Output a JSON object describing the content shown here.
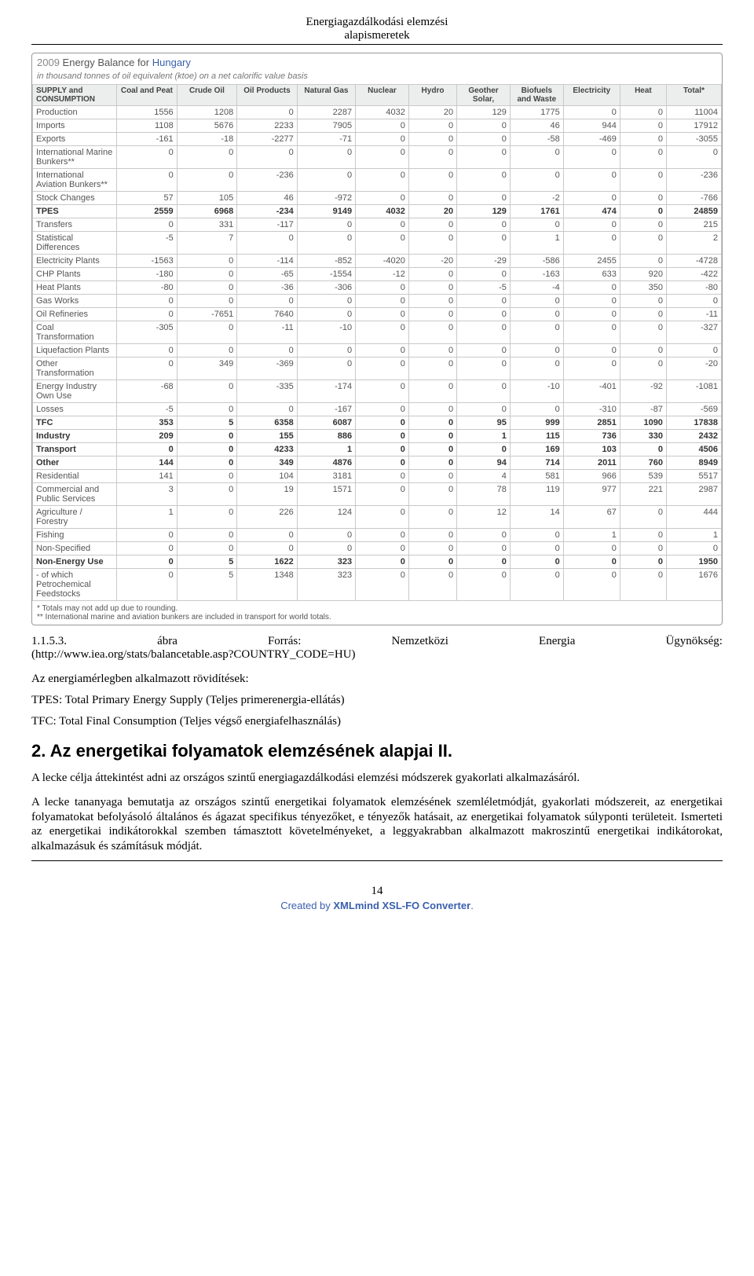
{
  "header": {
    "line1": "Energiagazdálkodási elemzési",
    "line2": "alapismeretek"
  },
  "balance": {
    "title_year": "2009",
    "title_text": "Energy Balance for",
    "title_country": "Hungary",
    "subtitle": "in thousand tonnes of oil equivalent (ktoe) on a net calorific value basis",
    "columns": [
      "SUPPLY and CONSUMPTION",
      "Coal and Peat",
      "Crude Oil",
      "Oil Products",
      "Natural Gas",
      "Nuclear",
      "Hydro",
      "Geother Solar,",
      "Biofuels and Waste",
      "Electricity",
      "Heat",
      "Total*"
    ],
    "col_widths": [
      "98",
      "70",
      "70",
      "70",
      "68",
      "62",
      "56",
      "62",
      "62",
      "66",
      "54",
      "64"
    ],
    "bold_rows": [
      7,
      15,
      16,
      17,
      18,
      23
    ],
    "rows": [
      [
        "Production",
        "1556",
        "1208",
        "0",
        "2287",
        "4032",
        "20",
        "129",
        "1775",
        "0",
        "0",
        "11004"
      ],
      [
        "Imports",
        "1108",
        "5676",
        "2233",
        "7905",
        "0",
        "0",
        "0",
        "46",
        "944",
        "0",
        "17912"
      ],
      [
        "Exports",
        "-161",
        "-18",
        "-2277",
        "-71",
        "0",
        "0",
        "0",
        "-58",
        "-469",
        "0",
        "-3055"
      ],
      [
        "International Marine Bunkers**",
        "0",
        "0",
        "0",
        "0",
        "0",
        "0",
        "0",
        "0",
        "0",
        "0",
        "0"
      ],
      [
        "International Aviation Bunkers**",
        "0",
        "0",
        "-236",
        "0",
        "0",
        "0",
        "0",
        "0",
        "0",
        "0",
        "-236"
      ],
      [
        "Stock Changes",
        "57",
        "105",
        "46",
        "-972",
        "0",
        "0",
        "0",
        "-2",
        "0",
        "0",
        "-766"
      ],
      [
        "TPES",
        "2559",
        "6968",
        "-234",
        "9149",
        "4032",
        "20",
        "129",
        "1761",
        "474",
        "0",
        "24859"
      ],
      [
        "Transfers",
        "0",
        "331",
        "-117",
        "0",
        "0",
        "0",
        "0",
        "0",
        "0",
        "0",
        "215"
      ],
      [
        "Statistical Differences",
        "-5",
        "7",
        "0",
        "0",
        "0",
        "0",
        "0",
        "1",
        "0",
        "0",
        "2"
      ],
      [
        "Electricity Plants",
        "-1563",
        "0",
        "-114",
        "-852",
        "-4020",
        "-20",
        "-29",
        "-586",
        "2455",
        "0",
        "-4728"
      ],
      [
        "CHP Plants",
        "-180",
        "0",
        "-65",
        "-1554",
        "-12",
        "0",
        "0",
        "-163",
        "633",
        "920",
        "-422"
      ],
      [
        "Heat Plants",
        "-80",
        "0",
        "-36",
        "-306",
        "0",
        "0",
        "-5",
        "-4",
        "0",
        "350",
        "-80"
      ],
      [
        "Gas Works",
        "0",
        "0",
        "0",
        "0",
        "0",
        "0",
        "0",
        "0",
        "0",
        "0",
        "0"
      ],
      [
        "Oil Refineries",
        "0",
        "-7651",
        "7640",
        "0",
        "0",
        "0",
        "0",
        "0",
        "0",
        "0",
        "-11"
      ],
      [
        "Coal Transformation",
        "-305",
        "0",
        "-11",
        "-10",
        "0",
        "0",
        "0",
        "0",
        "0",
        "0",
        "-327"
      ],
      [
        "Liquefaction Plants",
        "0",
        "0",
        "0",
        "0",
        "0",
        "0",
        "0",
        "0",
        "0",
        "0",
        "0"
      ],
      [
        "Other Transformation",
        "0",
        "349",
        "-369",
        "0",
        "0",
        "0",
        "0",
        "0",
        "0",
        "0",
        "-20"
      ],
      [
        "Energy Industry Own Use",
        "-68",
        "0",
        "-335",
        "-174",
        "0",
        "0",
        "0",
        "-10",
        "-401",
        "-92",
        "-1081"
      ],
      [
        "Losses",
        "-5",
        "0",
        "0",
        "-167",
        "0",
        "0",
        "0",
        "0",
        "-310",
        "-87",
        "-569"
      ],
      [
        "TFC",
        "353",
        "5",
        "6358",
        "6087",
        "0",
        "0",
        "95",
        "999",
        "2851",
        "1090",
        "17838"
      ],
      [
        "Industry",
        "209",
        "0",
        "155",
        "886",
        "0",
        "0",
        "1",
        "115",
        "736",
        "330",
        "2432"
      ],
      [
        "Transport",
        "0",
        "0",
        "4233",
        "1",
        "0",
        "0",
        "0",
        "169",
        "103",
        "0",
        "4506"
      ],
      [
        "Other",
        "144",
        "0",
        "349",
        "4876",
        "0",
        "0",
        "94",
        "714",
        "2011",
        "760",
        "8949"
      ],
      [
        "Residential",
        "141",
        "0",
        "104",
        "3181",
        "0",
        "0",
        "4",
        "581",
        "966",
        "539",
        "5517"
      ],
      [
        "Commercial and Public Services",
        "3",
        "0",
        "19",
        "1571",
        "0",
        "0",
        "78",
        "119",
        "977",
        "221",
        "2987"
      ],
      [
        "Agriculture / Forestry",
        "1",
        "0",
        "226",
        "124",
        "0",
        "0",
        "12",
        "14",
        "67",
        "0",
        "444"
      ],
      [
        "Fishing",
        "0",
        "0",
        "0",
        "0",
        "0",
        "0",
        "0",
        "0",
        "1",
        "0",
        "1"
      ],
      [
        "Non-Specified",
        "0",
        "0",
        "0",
        "0",
        "0",
        "0",
        "0",
        "0",
        "0",
        "0",
        "0"
      ],
      [
        "Non-Energy Use",
        "0",
        "5",
        "1622",
        "323",
        "0",
        "0",
        "0",
        "0",
        "0",
        "0",
        "1950"
      ],
      [
        "- of which Petrochemical Feedstocks",
        "0",
        "5",
        "1348",
        "323",
        "0",
        "0",
        "0",
        "0",
        "0",
        "0",
        "1676"
      ]
    ],
    "footnote1": "* Totals may not add up due to rounding.",
    "footnote2": "** International marine and aviation bunkers are included in transport for world totals."
  },
  "caption": {
    "c1": "1.1.5.3.",
    "c2": "ábra",
    "c3": "Forrás:",
    "c4": "Nemzetközi",
    "c5": "Energia",
    "c6": "Ügynökség:",
    "line2": "(http://www.iea.org/stats/balancetable.asp?COUNTRY_CODE=HU)"
  },
  "abbr": {
    "title": "Az energiamérlegben alkalmazott rövidítések:",
    "l1": "TPES: Total Primary Energy Supply (Teljes primerenergia-ellátás)",
    "l2": "TFC: Total Final Consumption (Teljes végső energiafelhasználás)"
  },
  "section_heading": "2. Az energetikai folyamatok elemzésének alapjai II.",
  "para1": "A lecke célja áttekintést adni az országos szintű energiagazdálkodási elemzési módszerek gyakorlati alkalmazásáról.",
  "para2": "A lecke tananyaga bemutatja az országos szintű energetikai folyamatok elemzésének szemléletmódját, gyakorlati módszereit, az energetikai folyamatokat befolyásoló általános és ágazat specifikus tényezőket, e tényezők hatásait, az energetikai folyamatok súlyponti területeit. Ismerteti az energetikai indikátorokkal szemben támasztott követelményeket, a leggyakrabban alkalmazott makroszintű energetikai indikátorokat, alkalmazásuk és számításuk módját.",
  "page_number": "14",
  "footer": {
    "pre": "Created by ",
    "brand": "XMLmind XSL-FO Converter",
    "post": "."
  }
}
